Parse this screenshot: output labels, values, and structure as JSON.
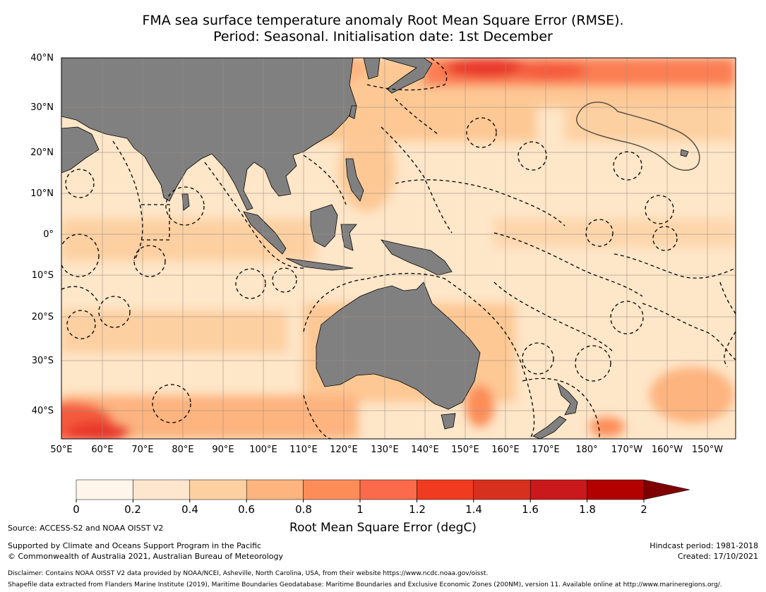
{
  "title": {
    "line1": "FMA sea surface temperature anomaly Root Mean Square Error (RMSE).",
    "line2": "Period: Seasonal. Initialisation date: 1st December"
  },
  "map": {
    "lat_labels": [
      "40°N",
      "30°N",
      "20°N",
      "10°N",
      "0°",
      "10°S",
      "20°S",
      "30°S",
      "40°S"
    ],
    "lon_labels": [
      "50°E",
      "60°E",
      "70°E",
      "80°E",
      "90°E",
      "100°E",
      "110°E",
      "120°E",
      "130°E",
      "140°E",
      "150°E",
      "160°E",
      "170°E",
      "180°",
      "170°W",
      "160°W",
      "150°W"
    ],
    "colors": {
      "land": "#808080",
      "ocean_base": "#fee6c8",
      "grid": "#9a8f86",
      "eez": "#000000",
      "pia": "#5a5045"
    }
  },
  "colorbar": {
    "ticks": [
      "0",
      "0.2",
      "0.4",
      "0.6",
      "0.8",
      "1",
      "1.2",
      "1.4",
      "1.6",
      "1.8",
      "2"
    ],
    "colors": [
      "#fff5eb",
      "#fee6ce",
      "#fdd0a2",
      "#fdb47f",
      "#fc8d59",
      "#fb6a4a",
      "#f03b20",
      "#d7301f",
      "#cb181d",
      "#b30000"
    ],
    "extend_color": "#7f0000",
    "label": "Root Mean Square Error (degC)"
  },
  "footer": {
    "source": "Source: ACCESS-S2 and NOAA OISST V2",
    "support": "Supported by Climate and Oceans Support Program in the Pacific",
    "copyright": "© Commonwealth of Australia 2021, Australian Bureau of Meteorology",
    "hindcast": "Hindcast period: 1981-2018",
    "created": "Created: 17/10/2021",
    "disclaimer": "Disclaimer: Contains NOAA OISST V2 data provided by NOAA/NCEI, Asheville, North Carolina, USA, from their website https://www.ncdc.noaa.gov/oisst.",
    "shapefile": "Shapefile data extracted from Flanders Marine Institute (2019), Maritime Boundaries Geodatabase: Maritime Boundaries and Exclusive Economic Zones (200NM), version 11. Available online at http://www.marineregions.org/."
  }
}
